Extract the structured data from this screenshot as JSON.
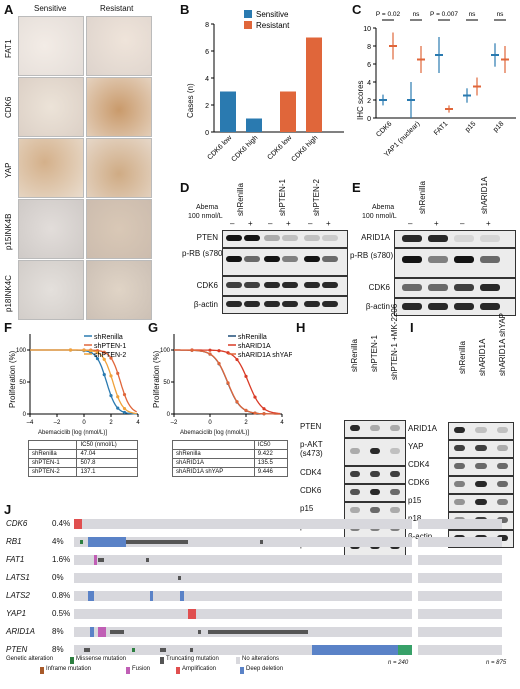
{
  "panels": {
    "A": "A",
    "B": "B",
    "C": "C",
    "D": "D",
    "E": "E",
    "F": "F",
    "G": "G",
    "H": "H",
    "I": "I",
    "J": "J"
  },
  "panelA": {
    "col_sensitive": "Sensitive",
    "col_resistant": "Resistant",
    "rows": [
      "FAT1",
      "CDK6",
      "YAP",
      "p15INK4B",
      "p18INK4C"
    ]
  },
  "panelB": {
    "ylabel": "Cases (n)",
    "legend": [
      "Sensitive",
      "Resistant"
    ],
    "colors": {
      "sensitive": "#2a7ab0",
      "resistant": "#e0663a"
    },
    "categories": [
      "CDK6 low",
      "CDK6 high",
      "CDK6 low",
      "CDK6 high"
    ],
    "yticks": [
      "0",
      "2",
      "4",
      "6",
      "8"
    ]
  },
  "panelC": {
    "ylabel": "IHC scores",
    "categories": [
      "CDK6",
      "YAP1 (nuclear)",
      "FAT1",
      "p15",
      "p18"
    ],
    "pvalues": [
      "P = 0.02",
      "ns",
      "P = 0.007",
      "ns",
      "ns"
    ],
    "yticks": [
      "0",
      "2",
      "4",
      "6",
      "8",
      "10"
    ]
  },
  "panelD": {
    "abema": "Abema",
    "dose": "100 nmol/L",
    "lanes": [
      "shRenilla",
      "shPTEN-1",
      "shPTEN-2"
    ],
    "signs": [
      "–",
      "+",
      "–",
      "+",
      "–",
      "+"
    ],
    "proteins": [
      "PTEN",
      "p-RB (s780)",
      "CDK6",
      "β-actin"
    ]
  },
  "panelE": {
    "abema": "Abema",
    "dose": "100 nmol/L",
    "lanes": [
      "shRenilla",
      "shARID1A"
    ],
    "signs": [
      "–",
      "+",
      "–",
      "+"
    ],
    "proteins": [
      "ARID1A",
      "p-RB (s780)",
      "CDK6",
      "β-actin"
    ]
  },
  "panelF": {
    "ylabel": "Proliferation (%)",
    "xlabel": "Abemaciclib [log (nmol/L)]",
    "legend": [
      "shRenilla",
      "shPTEN-1",
      "shPTEN-2"
    ],
    "xticks": [
      "–4",
      "–2",
      "0",
      "2",
      "4"
    ],
    "yticks": [
      "0",
      "50",
      "100"
    ],
    "ic_header": "IC50 (nmol/L)",
    "ic_rows": [
      [
        "shRenilla",
        "47.04"
      ],
      [
        "shPTEN-1",
        "507.8"
      ],
      [
        "shPTEN-2",
        "137.1"
      ]
    ]
  },
  "panelG": {
    "ylabel": "Proliferation (%)",
    "xlabel": "Abemaciclib [log (nmol/L)]",
    "legend": [
      "shRenilla",
      "shARID1A",
      "shARID1A shYAP"
    ],
    "xticks": [
      "–2",
      "0",
      "2",
      "4"
    ],
    "yticks": [
      "0",
      "50",
      "100"
    ],
    "ic_header": "IC50",
    "ic_rows": [
      [
        "shRenilla",
        "9.422"
      ],
      [
        "shARID1A",
        "135.5"
      ],
      [
        "shARID1A shYAP",
        "9.446"
      ]
    ]
  },
  "panelH": {
    "lanes": [
      "shRenilla",
      "shPTEN-1",
      "shPTEN-1 +MK-2206"
    ],
    "proteins": [
      "PTEN",
      "p-AKT (s473)",
      "CDK4",
      "CDK6",
      "p15",
      "p18",
      "β-actin"
    ]
  },
  "panelI": {
    "lanes": [
      "shRenilla",
      "shARID1A",
      "shARID1A shYAP"
    ],
    "proteins": [
      "ARID1A",
      "YAP",
      "CDK4",
      "CDK6",
      "p15",
      "p18",
      "β-actin"
    ]
  },
  "panelJ": {
    "genes": [
      [
        "CDK6",
        "0.4%"
      ],
      [
        "RB1",
        "4%"
      ],
      [
        "FAT1",
        "1.6%"
      ],
      [
        "LATS1",
        "0%"
      ],
      [
        "LATS2",
        "0.8%"
      ],
      [
        "YAP1",
        "0.5%"
      ],
      [
        "ARID1A",
        "8%"
      ],
      [
        "PTEN",
        "8%"
      ]
    ],
    "legend_title": "Genetic alteration",
    "legend": [
      "Missense mutation",
      "Truncating mutation",
      "No alterations",
      "Inframe mutation",
      "Fusion",
      "Amplification",
      "Deep deletion"
    ],
    "n1": "n = 240",
    "n2": "n = 875"
  }
}
